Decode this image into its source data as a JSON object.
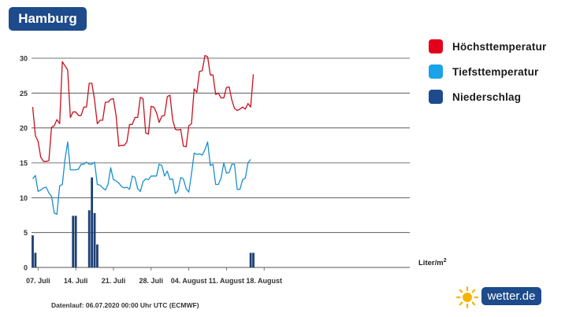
{
  "header": {
    "city": "Hamburg"
  },
  "legend": {
    "items": [
      {
        "label": "Höchsttemperatur",
        "color": "#e3001b"
      },
      {
        "label": "Tiefsttemperatur",
        "color": "#1aa3e8"
      },
      {
        "label": "Niederschlag",
        "color": "#1d4b8b"
      }
    ]
  },
  "precip_unit": {
    "base": "Liter/m",
    "exp": "2"
  },
  "footer_note": "Datenlauf: 06.07.2020 00:00 Uhr UTC (ECMWF)",
  "brand": {
    "name": "wetter.de",
    "icon": "sun-icon"
  },
  "chart_data": {
    "type": "line",
    "start_date": "2020-07-06",
    "x_tick_labels": [
      "07. Juli",
      "14. Juli",
      "21. Juli",
      "28. Juli",
      "04. August",
      "11. August",
      "18. August"
    ],
    "ylim": [
      0,
      30
    ],
    "y_ticks": [
      0,
      5,
      10,
      15,
      20,
      25,
      30
    ],
    "grid": true,
    "step_days": 0.5,
    "series": [
      {
        "name": "Höchsttemperatur",
        "kind": "line",
        "color": "#c8101e",
        "values": [
          23.0,
          18.9,
          18.1,
          15.8,
          15.2,
          15.2,
          15.3,
          20.1,
          20.3,
          21.2,
          20.6,
          29.5,
          28.9,
          28.3,
          21.5,
          22.3,
          22.3,
          21.8,
          21.8,
          23.0,
          23.0,
          26.4,
          26.4,
          24.0,
          20.6,
          21.1,
          21.1,
          23.7,
          23.7,
          24.1,
          24.2,
          21.7,
          17.4,
          17.5,
          17.5,
          18.0,
          20.5,
          20.5,
          21.5,
          21.5,
          24.4,
          24.2,
          19.3,
          19.1,
          23.1,
          23.0,
          22.2,
          20.8,
          21.7,
          21.8,
          24.5,
          24.7,
          21.2,
          19.8,
          19.7,
          19.8,
          17.4,
          17.3,
          20.3,
          20.6,
          25.6,
          25.1,
          28.1,
          28.2,
          30.4,
          30.2,
          27.6,
          27.6,
          24.8,
          25.0,
          24.3,
          24.3,
          25.8,
          25.9,
          24.0,
          22.8,
          22.5,
          22.7,
          23.0,
          22.7,
          23.5,
          23.0,
          27.7
        ]
      },
      {
        "name": "Tiefsttemperatur",
        "kind": "line",
        "color": "#1a8fcf",
        "values": [
          12.7,
          13.2,
          10.9,
          11.1,
          11.4,
          11.5,
          10.7,
          10.2,
          7.8,
          7.6,
          11.7,
          11.9,
          15.5,
          18.0,
          14.0,
          14.0,
          14.0,
          14.1,
          14.8,
          14.8,
          15.1,
          14.8,
          14.8,
          15.1,
          11.9,
          11.8,
          11.4,
          11.1,
          11.9,
          14.3,
          12.6,
          12.4,
          12.1,
          11.6,
          11.4,
          11.5,
          11.2,
          13.1,
          12.9,
          11.3,
          10.9,
          12.3,
          12.7,
          12.6,
          13.1,
          13.1,
          13.1,
          14.8,
          14.6,
          13.1,
          13.8,
          12.6,
          12.7,
          10.6,
          11.0,
          12.9,
          12.7,
          11.3,
          10.8,
          13.4,
          16.4,
          16.2,
          16.3,
          16.1,
          16.9,
          18.0,
          14.6,
          14.8,
          11.9,
          11.9,
          12.8,
          15.0,
          13.5,
          13.6,
          14.8,
          14.8,
          11.2,
          11.2,
          12.6,
          12.8,
          15.0,
          15.5
        ]
      },
      {
        "name": "Niederschlag",
        "kind": "bar",
        "color": "#1d3f73",
        "points": [
          {
            "t": 0.0,
            "v": 4.6
          },
          {
            "t": 0.5,
            "v": 2.1
          },
          {
            "t": 7.5,
            "v": 7.4
          },
          {
            "t": 8.0,
            "v": 7.4
          },
          {
            "t": 10.5,
            "v": 8.2
          },
          {
            "t": 11.0,
            "v": 12.9
          },
          {
            "t": 11.5,
            "v": 7.8
          },
          {
            "t": 12.0,
            "v": 3.3
          },
          {
            "t": 40.5,
            "v": 2.1
          },
          {
            "t": 41.0,
            "v": 2.1
          }
        ]
      }
    ]
  }
}
